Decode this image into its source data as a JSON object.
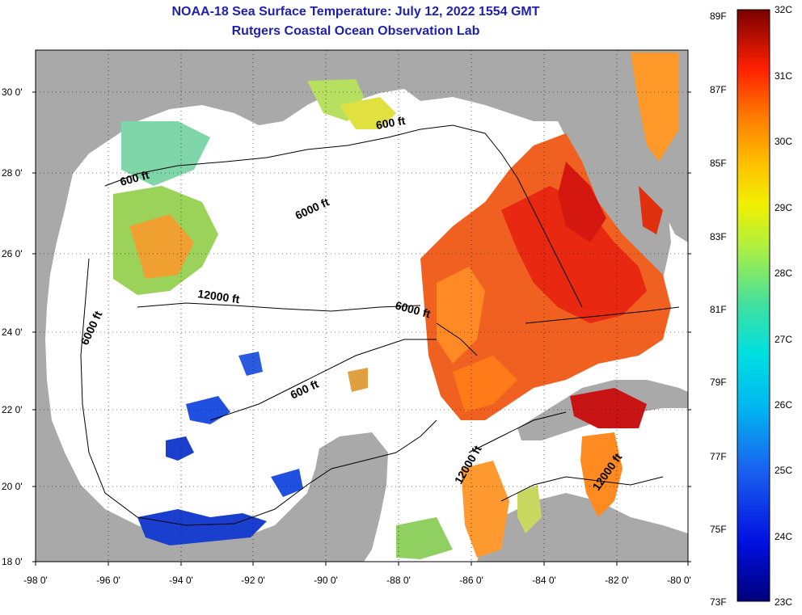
{
  "header": {
    "title": "NOAA-18 Sea Surface Temperature:  July 12, 2022 1554 GMT",
    "subtitle": "Rutgers Coastal Ocean Observation Lab"
  },
  "map": {
    "region": "Gulf of Mexico",
    "latitude_labels": [
      "30 0'",
      "28 0'",
      "26 0'",
      "24 0'",
      "22 0'",
      "20 0'",
      "18 0'"
    ],
    "longitude_labels": [
      "-98 0'",
      "-96 0'",
      "-94 0'",
      "-92 0'",
      "-90 0'",
      "-88 0'",
      "-86 0'",
      "-84 0'",
      "-82 0'",
      "-80 0'"
    ],
    "contour_labels": [
      {
        "text": "600 ft"
      },
      {
        "text": "600 ft"
      },
      {
        "text": "6000 ft"
      },
      {
        "text": "12000 ft"
      },
      {
        "text": "6000 ft"
      },
      {
        "text": "6000 ft"
      },
      {
        "text": "600 ft"
      },
      {
        "text": "12000 ft"
      },
      {
        "text": "12000 ft"
      }
    ],
    "colors": {
      "land": "#a9a9a9",
      "ocean_no_data": "#ffffff",
      "warm": "#e83a10",
      "hot": "#c41010",
      "mid": "#ff8a20",
      "cool": "#6cd26c",
      "cold": "#1a3fcf"
    }
  },
  "colorbar": {
    "fahrenheit_labels": [
      "89F",
      "87F",
      "85F",
      "83F",
      "81F",
      "79F",
      "77F",
      "75F",
      "73F"
    ],
    "celsius_labels": [
      "32C",
      "31C",
      "30C",
      "29C",
      "28C",
      "27C",
      "26C",
      "25C",
      "24C",
      "23C"
    ],
    "min_c": 23,
    "max_c": 32
  }
}
